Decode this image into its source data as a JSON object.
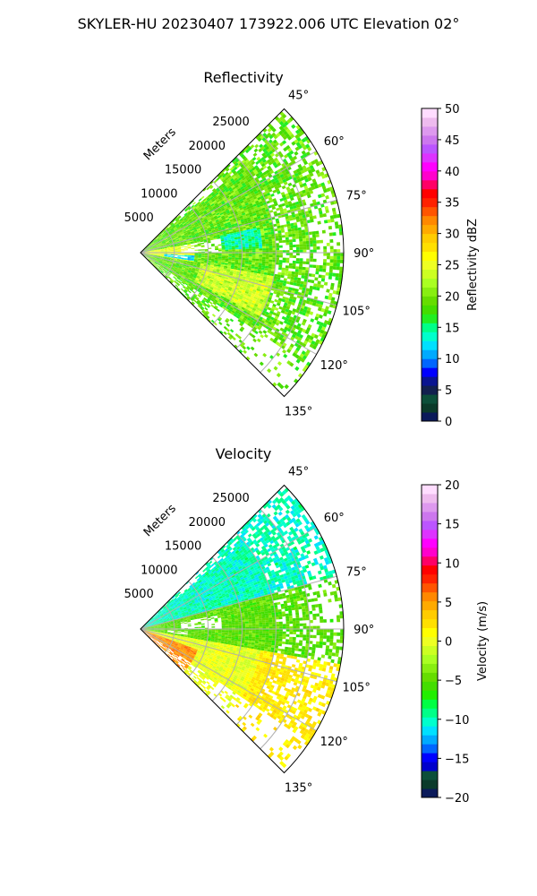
{
  "suptitle": "SKYLER-HU  20230407  173922.006 UTC Elevation 02°",
  "chart_data": [
    {
      "type": "heatmap",
      "projection": "polar-sector",
      "title": "Reflectivity",
      "radial_label": "Meters",
      "r_ticks": [
        5000,
        10000,
        15000,
        20000,
        25000
      ],
      "r_tick_labels": [
        "5000",
        "10000",
        "15000",
        "20000",
        "25000"
      ],
      "r_max": 30000,
      "theta_range_deg": [
        45,
        135
      ],
      "theta_ticks_deg": [
        45,
        60,
        75,
        90,
        105,
        120,
        135
      ],
      "theta_tick_labels": [
        "45°",
        "60°",
        "75°",
        "90°",
        "105°",
        "120°",
        "135°"
      ],
      "grid": true,
      "colorbar": {
        "label": "Reflectivity dBZ",
        "range": [
          0,
          50
        ],
        "ticks": [
          0,
          5,
          10,
          15,
          20,
          25,
          30,
          35,
          40,
          45,
          50
        ],
        "tick_labels": [
          "0",
          "5",
          "10",
          "15",
          "20",
          "25",
          "30",
          "35",
          "40",
          "45",
          "50"
        ],
        "colors": [
          "#0b1a5a",
          "#0b3a2a",
          "#0c4f3a",
          "#12204f",
          "#0a1490",
          "#0000ff",
          "#0066ff",
          "#00aaff",
          "#00e0ff",
          "#00ffcc",
          "#00ff88",
          "#22ee22",
          "#44dd00",
          "#66dd00",
          "#88ee11",
          "#aaff22",
          "#ccff22",
          "#eeff22",
          "#ffff00",
          "#ffe000",
          "#ffcc00",
          "#ffaa00",
          "#ff8800",
          "#ff5500",
          "#ff2200",
          "#ff0000",
          "#ff0066",
          "#ff00cc",
          "#ff00ff",
          "#dd33ff",
          "#bb55ff",
          "#cc77ee",
          "#dd99ee",
          "#eebbee",
          "#ffddff"
        ]
      },
      "field_summary": "mostly 15-25 dBZ returns across sector; cyan pocket (~10-12 dBZ) near 95°, 5-8 km"
    },
    {
      "type": "heatmap",
      "projection": "polar-sector",
      "title": "Velocity",
      "radial_label": "Meters",
      "r_ticks": [
        5000,
        10000,
        15000,
        20000,
        25000
      ],
      "r_tick_labels": [
        "5000",
        "10000",
        "15000",
        "20000",
        "25000"
      ],
      "r_max": 30000,
      "theta_range_deg": [
        45,
        135
      ],
      "theta_ticks_deg": [
        45,
        60,
        75,
        90,
        105,
        120,
        135
      ],
      "theta_tick_labels": [
        "45°",
        "60°",
        "75°",
        "90°",
        "105°",
        "120°",
        "135°"
      ],
      "grid": true,
      "colorbar": {
        "label": "Velocity (m/s)",
        "range": [
          -20,
          20
        ],
        "ticks": [
          -20,
          -15,
          -10,
          -5,
          0,
          5,
          10,
          15,
          20
        ],
        "tick_labels": [
          "−20",
          "−15",
          "−10",
          "−5",
          "0",
          "5",
          "10",
          "15",
          "20"
        ],
        "colors": [
          "#0b1a5a",
          "#0b3a2a",
          "#0c4f3a",
          "#0000cc",
          "#0000ff",
          "#0066ff",
          "#00aaff",
          "#00e0ff",
          "#00ffcc",
          "#00ff88",
          "#00ff44",
          "#22ee00",
          "#44dd00",
          "#66dd00",
          "#88ee11",
          "#aaff22",
          "#ccff22",
          "#eeff22",
          "#ffff00",
          "#ffe000",
          "#ffcc00",
          "#ffaa00",
          "#ff8800",
          "#ff5500",
          "#ff2200",
          "#ff0000",
          "#ff0066",
          "#ff00cc",
          "#ff00ff",
          "#dd33ff",
          "#bb55ff",
          "#cc77ee",
          "#dd99ee",
          "#eebbee",
          "#ffddff"
        ]
      },
      "field_summary": "approaching (-8 to -12 m/s) north of 75°, near zero (-2 to 2 m/s) south of 100°, orange (+5) near radar at ~125°"
    }
  ]
}
